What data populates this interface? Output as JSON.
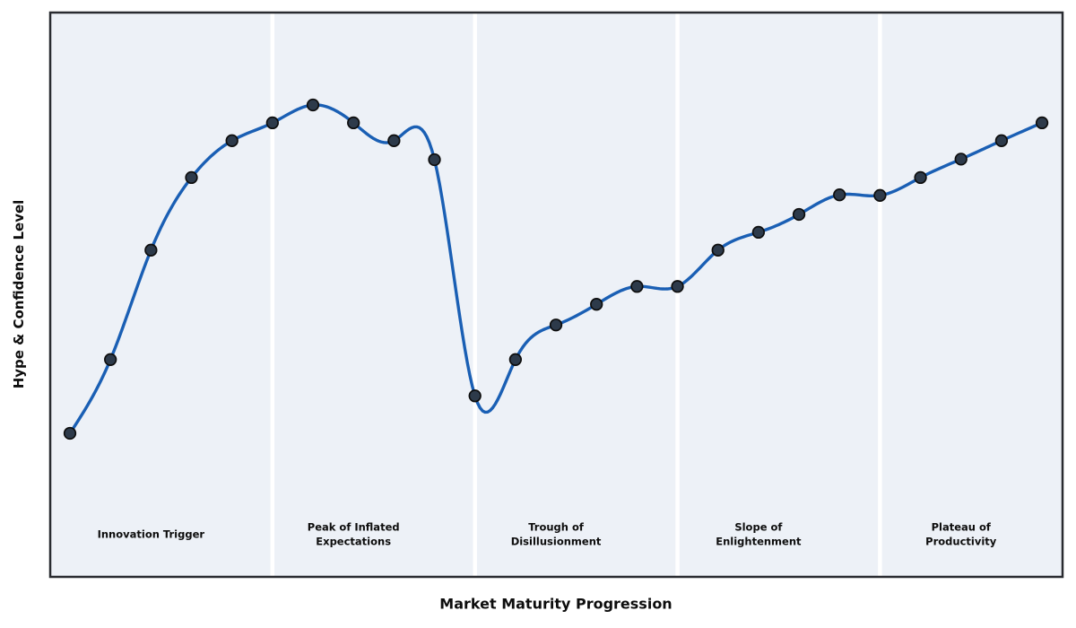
{
  "chart_data": {
    "type": "line",
    "title": "",
    "xlabel": "Market Maturity Progression",
    "ylabel": "Hype & Confidence Level",
    "x": [
      0,
      1,
      2,
      3,
      4,
      5,
      6,
      7,
      8,
      9,
      10,
      11,
      12,
      13,
      14,
      15,
      16,
      17,
      18,
      19,
      20,
      21,
      22,
      23,
      24
    ],
    "values": [
      24.7,
      37.9,
      57.5,
      70.5,
      77.1,
      80.3,
      83.5,
      80.3,
      77.1,
      73.7,
      31.4,
      37.9,
      44.1,
      47.8,
      51.0,
      51.0,
      57.5,
      60.7,
      63.9,
      67.4,
      67.3,
      70.5,
      73.8,
      77.1,
      80.3
    ],
    "xlim": [
      -0.5,
      24.5
    ],
    "ylim": [
      0,
      100
    ],
    "grid": false,
    "legend": "none",
    "ticks": "none",
    "curve_style": "natural-cubic-spline-through-points",
    "phase_boundaries_x": [
      5,
      10,
      15,
      20
    ],
    "phases": [
      {
        "label": "Innovation Trigger",
        "label_x": 2
      },
      {
        "label": "Peak of Inflated\nExpectations",
        "label_x": 7
      },
      {
        "label": "Trough of\nDisillusionment",
        "label_x": 12
      },
      {
        "label": "Slope of\nEnlightenment",
        "label_x": 17
      },
      {
        "label": "Plateau of\nProductivity",
        "label_x": 22
      }
    ],
    "style": {
      "line_color": "#1a5fb4",
      "marker_fill": "#2d3a4a",
      "marker_edge": "#0d0d0d",
      "plot_background": "#edf1f7",
      "separator_color": "#ffffff",
      "frame_color": "#292b30",
      "figure_background": "#ffffff",
      "text_color": "#0d0d0d"
    }
  }
}
